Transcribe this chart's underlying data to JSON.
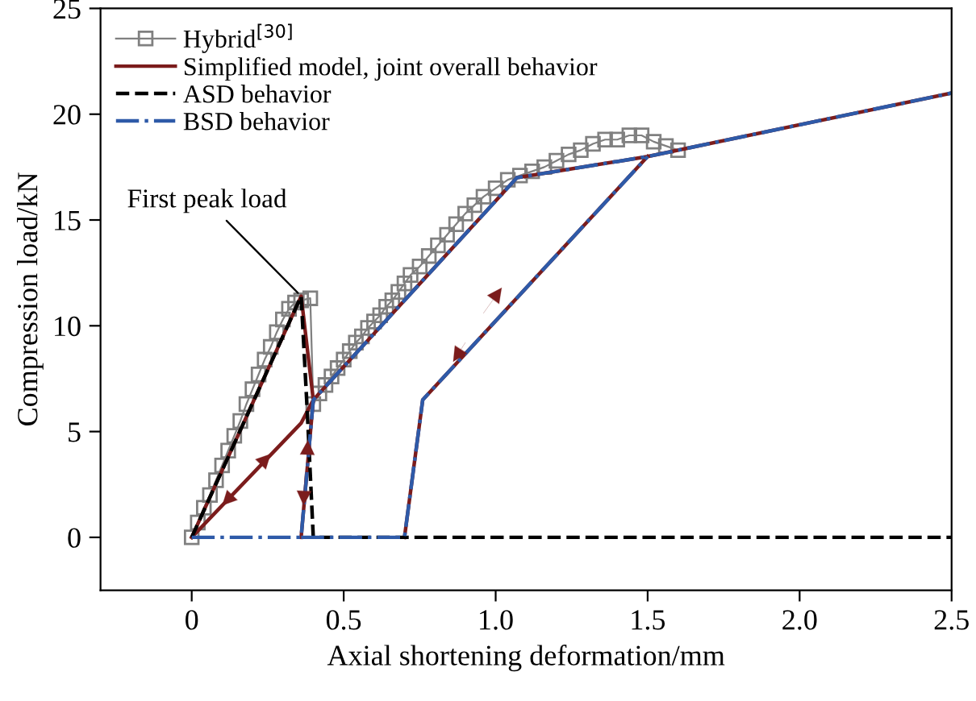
{
  "chart_data": {
    "type": "line",
    "xlabel": "Axial shortening deformation/mm",
    "ylabel": "Compression load/kN",
    "xlim": [
      -0.3,
      2.5
    ],
    "xticks": [
      {
        "value": 0,
        "label": "0"
      },
      0.5,
      {
        "value": 1,
        "label": "1.0"
      },
      1.5,
      {
        "value": 2,
        "label": "2.0"
      },
      2.5
    ],
    "ylim": [
      -2.5,
      25
    ],
    "yticks": [
      0,
      5,
      10,
      15,
      20,
      25
    ],
    "grid": false,
    "legend": "top left",
    "annotations": [
      {
        "text": "First peak load",
        "x": 0.36,
        "y": 11.4
      }
    ],
    "series": [
      {
        "name": "Hybrid$^{[30]}$",
        "color": "#808080",
        "marker": "square",
        "line_style": "solid",
        "x": [
          0,
          0.02,
          0.04,
          0.06,
          0.08,
          0.1,
          0.12,
          0.14,
          0.16,
          0.18,
          0.2,
          0.22,
          0.24,
          0.26,
          0.28,
          0.3,
          0.32,
          0.34,
          0.36,
          0.39,
          0.4,
          0.42,
          0.44,
          0.46,
          0.48,
          0.5,
          0.52,
          0.54,
          0.56,
          0.58,
          0.6,
          0.62,
          0.64,
          0.66,
          0.68,
          0.7,
          0.72,
          0.75,
          0.78,
          0.81,
          0.84,
          0.87,
          0.9,
          0.93,
          0.96,
          1.0,
          1.04,
          1.08,
          1.12,
          1.16,
          1.2,
          1.24,
          1.28,
          1.32,
          1.36,
          1.4,
          1.44,
          1.48,
          1.52,
          1.56,
          1.6
        ],
        "values": [
          0,
          0.7,
          1.4,
          2.0,
          2.7,
          3.4,
          4.1,
          4.8,
          5.5,
          6.3,
          7.0,
          7.7,
          8.4,
          9.0,
          9.7,
          10.3,
          10.8,
          11.1,
          11.2,
          11.3,
          6.3,
          6.8,
          7.2,
          7.6,
          8.0,
          8.4,
          8.8,
          9.2,
          9.5,
          9.9,
          10.2,
          10.5,
          10.9,
          11.2,
          11.6,
          12.0,
          12.4,
          12.8,
          13.3,
          13.8,
          14.3,
          14.8,
          15.3,
          15.7,
          16.1,
          16.5,
          16.9,
          17.1,
          17.3,
          17.5,
          17.8,
          18.1,
          18.3,
          18.6,
          18.8,
          18.8,
          19.0,
          19.0,
          18.7,
          18.5,
          18.3
        ]
      },
      {
        "name": "Simplified model, joint overall behavior",
        "color": "#7b1c1c",
        "marker": "none",
        "line_style": "solid",
        "x": [
          0,
          0.36,
          0.4,
          1.07,
          1.5,
          2.5,
          null,
          0,
          0.36,
          0.4,
          null,
          0.36,
          0.4,
          null,
          0.7,
          0.76,
          1.5
        ],
        "values": [
          0,
          11.4,
          6.5,
          17.0,
          18.0,
          21.0,
          null,
          0,
          5.4,
          6.5,
          null,
          0,
          6.5,
          null,
          0,
          6.5,
          18.0
        ]
      },
      {
        "name": "ASD behavior",
        "color": "#000000",
        "marker": "none",
        "line_style": "dashed",
        "x": [
          0,
          0.36,
          0.38,
          0.4,
          2.5
        ],
        "values": [
          0,
          11.4,
          6.0,
          0,
          0
        ]
      },
      {
        "name": "BSD behavior",
        "color": "#2e5aa8",
        "marker": "none",
        "line_style": "dashdot",
        "x": [
          0,
          0.36,
          0.4,
          1.07,
          1.5,
          2.5,
          null,
          0.36,
          0.7,
          0.76,
          1.5
        ],
        "values": [
          0,
          0,
          6.5,
          17.0,
          18.0,
          21.0,
          null,
          0,
          0,
          6.5,
          18.0
        ]
      }
    ]
  }
}
